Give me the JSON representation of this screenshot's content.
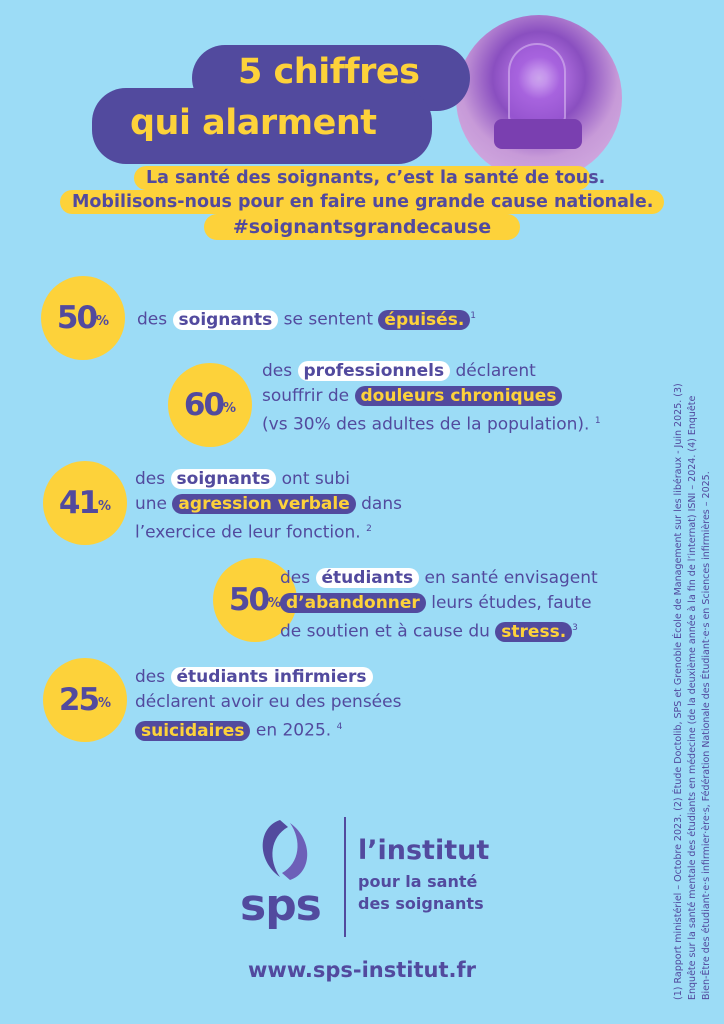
{
  "header": {
    "title_line1": "5 chiffres",
    "title_line2": "qui alarment",
    "subtitle_line1": "La santé des soignants, c’est la santé de tous.",
    "subtitle_line2": "Mobilisons-nous pour en faire une grande cause nationale.",
    "hashtag": "#soignantsgrandecause"
  },
  "stats": [
    {
      "number": "50",
      "percent": "%",
      "lines": [
        [
          "des ",
          "soignants",
          " se sentent ",
          "épuisés.",
          "1"
        ]
      ]
    },
    {
      "number": "60",
      "percent": "%",
      "l1a": "des ",
      "l1b": "professionnels",
      "l1c": " déclarent",
      "l2a": "souffrir de ",
      "l2b": "douleurs chroniques",
      "l3": "(vs 30% des adultes de la population).",
      "ref": "1"
    },
    {
      "number": "41",
      "percent": "%",
      "l1a": "des ",
      "l1b": "soignants",
      "l1c": " ont subi",
      "l2a": "une ",
      "l2b": "agression verbale",
      "l2c": " dans",
      "l3": "l’exercice de leur fonction.",
      "ref": "2"
    },
    {
      "number": "50",
      "percent": "%",
      "l1a": "des ",
      "l1b": "étudiants",
      "l1c": " en santé envisagent",
      "l2b": "d’abandonner",
      "l2c": " leurs études, faute",
      "l3a": "de soutien et à cause du ",
      "l3b": "stress.",
      "ref": "3"
    },
    {
      "number": "25",
      "percent": "%",
      "l1a": "des ",
      "l1b": "étudiants infirmiers",
      "l2": "déclarent avoir eu des pensées",
      "l3b": "suicidaires",
      "l3c": " en 2025.",
      "ref": "4"
    }
  ],
  "logo": {
    "mark": "sps",
    "line1": "l’institut",
    "line2": "pour la santé",
    "line3": "des soignants"
  },
  "website": "www.sps-institut.fr",
  "footnotes": [
    "(1) Rapport ministériel – Octobre 2023. (2) Étude Doctolib, SPS et Grenoble École de Management sur les libéraux - Juin 2025. (3)",
    "Enquête sur la santé mentale des étudiants en médecine (de la deuxième année à la fin de l’internat) ISNI – 2024. (4) Enquête",
    "Bien-Être des étudiant·e·s infirmier·ère·s, Fédération Nationale des Étudiant·e·s en Sciences infirmières – 2025."
  ],
  "colors": {
    "background": "#9cdcf6",
    "purple": "#524a9e",
    "yellow": "#fdd23a"
  }
}
